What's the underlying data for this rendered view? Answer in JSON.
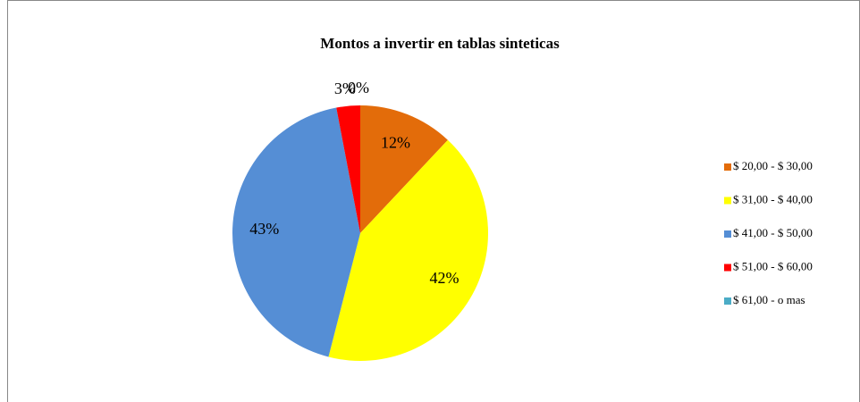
{
  "chart_data": {
    "type": "pie",
    "title": "Montos a invertir en tablas sinteticas",
    "categories": [
      "$ 20,00 - $ 30,00",
      "$ 31,00 - $ 40,00",
      "$ 41,00 - $ 50,00",
      "$ 51,00 - $ 60,00",
      "$ 61,00 - o mas"
    ],
    "values": [
      12,
      42,
      43,
      3,
      0
    ],
    "value_labels": [
      "12%",
      "42%",
      "43%",
      "3%",
      "0%"
    ],
    "colors": [
      "#e36c0a",
      "#ffff00",
      "#558ed5",
      "#ff0000",
      "#4bacc6"
    ],
    "legend": "right"
  }
}
